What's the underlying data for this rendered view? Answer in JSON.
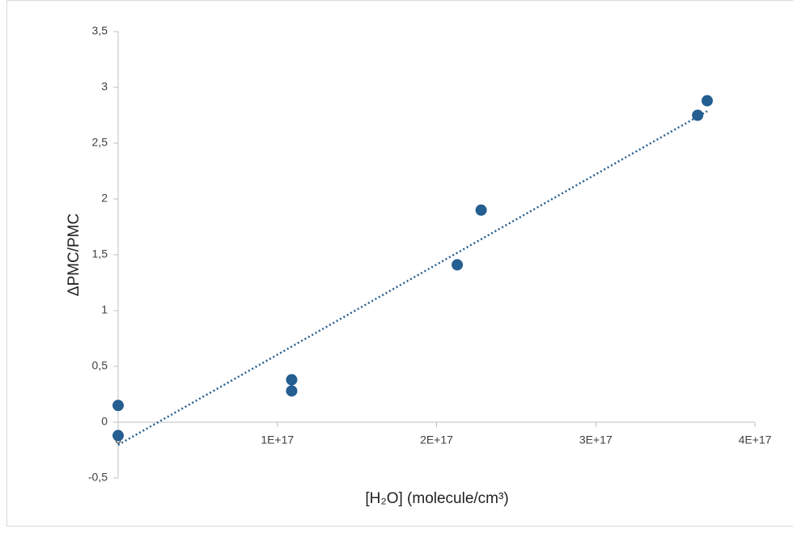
{
  "chart_data": {
    "type": "scatter",
    "x_label": "[H₂O] (molecule/cm³)",
    "y_label": "ΔPMC/PMC",
    "x": [
      0,
      0,
      1.09e+17,
      1.09e+17,
      2.13e+17,
      2.28e+17,
      3.64e+17,
      3.7e+17
    ],
    "values": [
      0.15,
      -0.12,
      0.38,
      0.28,
      1.41,
      1.9,
      2.75,
      2.88
    ],
    "color": "#255e91",
    "trendline": true,
    "xlim": [
      0,
      4e+17
    ],
    "xticks": [
      0,
      {
        "value": 1e+17,
        "label": "1E+17"
      },
      {
        "value": 2e+17,
        "label": "2E+17"
      },
      {
        "value": 3e+17,
        "label": "3E+17"
      },
      {
        "value": 4e+17,
        "label": "4E+17"
      }
    ],
    "ylim": [
      -0.5,
      3.5
    ],
    "yticks": [
      {
        "value": -0.5,
        "label": "-0,5"
      },
      0,
      {
        "value": 0.5,
        "label": "0,5"
      },
      1,
      {
        "value": 1.5,
        "label": "1,5"
      },
      2,
      {
        "value": 2.5,
        "label": "2,5"
      },
      3,
      {
        "value": 3.5,
        "label": "3,5"
      }
    ],
    "grid": false
  }
}
